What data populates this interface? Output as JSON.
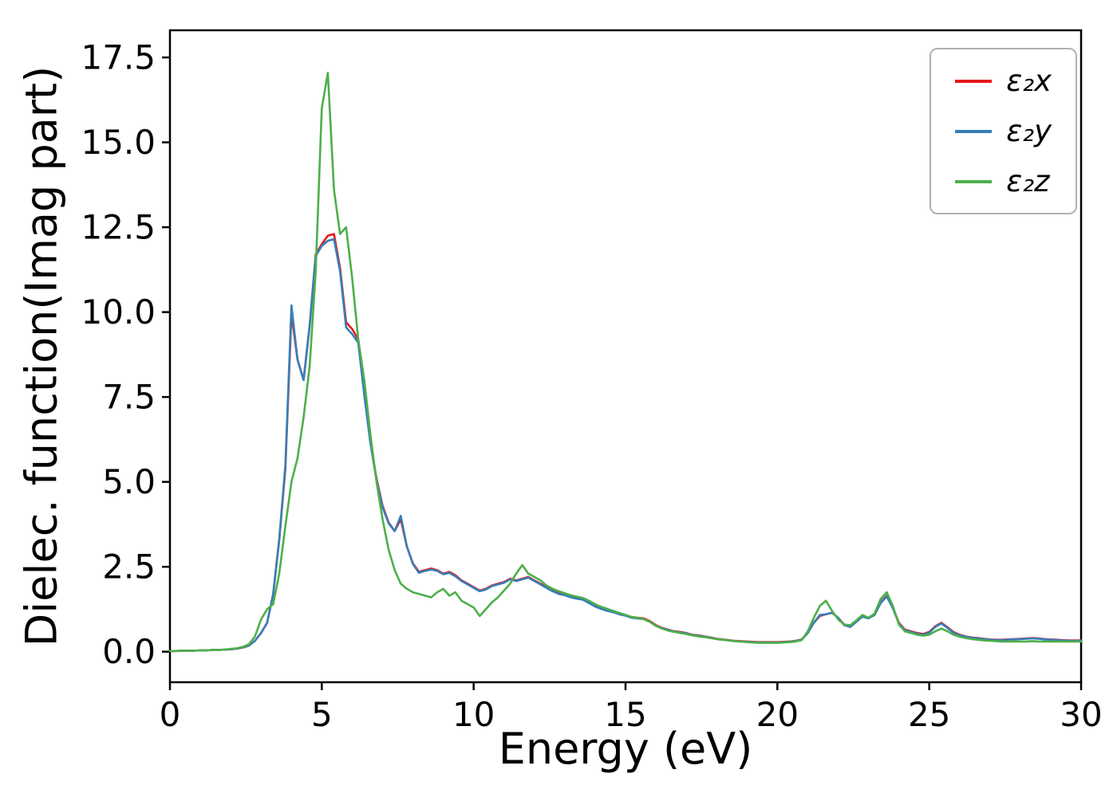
{
  "figure": {
    "background": "#ffffff"
  },
  "chart_data": {
    "type": "line",
    "title": "",
    "xlabel": "Energy (eV)",
    "ylabel": "Dielec. function(Imag part)",
    "xlim": [
      0,
      30
    ],
    "ylim": [
      -0.9,
      18.3
    ],
    "xticks": [
      0,
      5,
      10,
      15,
      20,
      25,
      30
    ],
    "xtick_labels": [
      "0",
      "5",
      "10",
      "15",
      "20",
      "25",
      "30"
    ],
    "yticks": [
      0,
      2.5,
      5,
      7.5,
      10,
      12.5,
      15,
      17.5
    ],
    "ytick_labels": [
      "0.0",
      "2.5",
      "5.0",
      "7.5",
      "10.0",
      "12.5",
      "15.0",
      "17.5"
    ],
    "grid": false,
    "legend": {
      "position": "upper right"
    },
    "x": [
      0.0,
      0.2,
      0.4,
      0.6,
      0.8,
      1.0,
      1.2,
      1.4,
      1.6,
      1.8,
      2.0,
      2.2,
      2.4,
      2.6,
      2.8,
      3.0,
      3.2,
      3.4,
      3.6,
      3.8,
      4.0,
      4.2,
      4.4,
      4.6,
      4.8,
      5.0,
      5.2,
      5.4,
      5.6,
      5.8,
      6.0,
      6.2,
      6.4,
      6.6,
      6.8,
      7.0,
      7.2,
      7.4,
      7.6,
      7.8,
      8.0,
      8.2,
      8.4,
      8.6,
      8.8,
      9.0,
      9.2,
      9.4,
      9.6,
      9.8,
      10.0,
      10.2,
      10.4,
      10.6,
      10.8,
      11.0,
      11.2,
      11.4,
      11.6,
      11.8,
      12.0,
      12.2,
      12.4,
      12.6,
      12.8,
      13.0,
      13.2,
      13.4,
      13.6,
      13.8,
      14.0,
      14.2,
      14.4,
      14.6,
      14.8,
      15.0,
      15.2,
      15.4,
      15.6,
      15.8,
      16.0,
      16.2,
      16.4,
      16.6,
      16.8,
      17.0,
      17.2,
      17.4,
      17.6,
      17.8,
      18.0,
      18.2,
      18.4,
      18.6,
      18.8,
      19.0,
      19.2,
      19.4,
      19.6,
      19.8,
      20.0,
      20.2,
      20.4,
      20.6,
      20.8,
      21.0,
      21.2,
      21.4,
      21.6,
      21.8,
      22.0,
      22.2,
      22.4,
      22.6,
      22.8,
      23.0,
      23.2,
      23.4,
      23.6,
      23.8,
      24.0,
      24.2,
      24.4,
      24.6,
      24.8,
      25.0,
      25.2,
      25.4,
      25.6,
      25.8,
      26.0,
      26.2,
      26.4,
      26.6,
      26.8,
      27.0,
      27.2,
      27.4,
      27.6,
      27.8,
      28.0,
      28.2,
      28.4,
      28.6,
      28.8,
      29.0,
      29.2,
      29.4,
      29.6,
      29.8,
      30.0
    ],
    "series": [
      {
        "name": "ε₂x",
        "color": "#e41a1c",
        "values": [
          0.02,
          0.02,
          0.03,
          0.03,
          0.03,
          0.04,
          0.04,
          0.05,
          0.05,
          0.06,
          0.07,
          0.09,
          0.12,
          0.18,
          0.32,
          0.55,
          0.85,
          1.7,
          3.3,
          5.4,
          9.95,
          8.6,
          8.0,
          9.6,
          11.7,
          12.0,
          12.25,
          12.3,
          11.3,
          9.7,
          9.5,
          9.2,
          7.6,
          6.2,
          5.1,
          4.3,
          3.8,
          3.55,
          3.9,
          3.1,
          2.6,
          2.35,
          2.4,
          2.45,
          2.4,
          2.3,
          2.35,
          2.25,
          2.1,
          2.0,
          1.9,
          1.8,
          1.85,
          1.95,
          2.0,
          2.05,
          2.15,
          2.1,
          2.15,
          2.2,
          2.1,
          2.0,
          1.9,
          1.8,
          1.72,
          1.68,
          1.62,
          1.58,
          1.55,
          1.45,
          1.35,
          1.28,
          1.22,
          1.18,
          1.12,
          1.08,
          1.02,
          1.0,
          0.98,
          0.9,
          0.78,
          0.7,
          0.65,
          0.6,
          0.58,
          0.55,
          0.5,
          0.48,
          0.45,
          0.42,
          0.38,
          0.36,
          0.34,
          0.32,
          0.31,
          0.3,
          0.29,
          0.28,
          0.28,
          0.28,
          0.28,
          0.29,
          0.3,
          0.32,
          0.36,
          0.55,
          0.85,
          1.05,
          1.1,
          1.15,
          1.0,
          0.8,
          0.75,
          0.9,
          1.05,
          1.0,
          1.1,
          1.45,
          1.65,
          1.3,
          0.85,
          0.65,
          0.6,
          0.55,
          0.52,
          0.58,
          0.75,
          0.85,
          0.72,
          0.58,
          0.5,
          0.45,
          0.42,
          0.4,
          0.38,
          0.36,
          0.35,
          0.35,
          0.36,
          0.37,
          0.38,
          0.39,
          0.4,
          0.39,
          0.37,
          0.36,
          0.35,
          0.34,
          0.33,
          0.33,
          0.33
        ]
      },
      {
        "name": "ε₂y",
        "color": "#377eb8",
        "values": [
          0.02,
          0.02,
          0.03,
          0.03,
          0.03,
          0.04,
          0.04,
          0.05,
          0.05,
          0.06,
          0.07,
          0.09,
          0.12,
          0.18,
          0.32,
          0.55,
          0.85,
          1.7,
          3.3,
          5.5,
          10.2,
          8.6,
          8.0,
          9.6,
          11.65,
          11.95,
          12.1,
          12.15,
          11.2,
          9.55,
          9.35,
          9.1,
          7.55,
          6.15,
          5.05,
          4.25,
          3.78,
          3.55,
          4.0,
          3.1,
          2.58,
          2.32,
          2.38,
          2.42,
          2.38,
          2.28,
          2.32,
          2.22,
          2.08,
          1.98,
          1.88,
          1.78,
          1.83,
          1.93,
          1.98,
          2.03,
          2.13,
          2.08,
          2.13,
          2.18,
          2.08,
          1.98,
          1.88,
          1.78,
          1.7,
          1.66,
          1.6,
          1.56,
          1.53,
          1.43,
          1.33,
          1.26,
          1.2,
          1.16,
          1.1,
          1.06,
          1.0,
          0.98,
          0.96,
          0.88,
          0.76,
          0.69,
          0.64,
          0.59,
          0.57,
          0.54,
          0.49,
          0.47,
          0.44,
          0.41,
          0.37,
          0.35,
          0.33,
          0.31,
          0.3,
          0.29,
          0.28,
          0.27,
          0.27,
          0.27,
          0.27,
          0.28,
          0.29,
          0.31,
          0.35,
          0.55,
          0.85,
          1.08,
          1.1,
          1.15,
          1.0,
          0.78,
          0.73,
          0.88,
          1.03,
          0.98,
          1.08,
          1.43,
          1.63,
          1.28,
          0.83,
          0.63,
          0.58,
          0.53,
          0.5,
          0.56,
          0.73,
          0.83,
          0.7,
          0.56,
          0.48,
          0.44,
          0.41,
          0.39,
          0.37,
          0.35,
          0.34,
          0.34,
          0.35,
          0.36,
          0.37,
          0.38,
          0.39,
          0.38,
          0.36,
          0.35,
          0.34,
          0.33,
          0.32,
          0.32,
          0.32
        ]
      },
      {
        "name": "ε₂z",
        "color": "#4daf4a",
        "values": [
          0.02,
          0.02,
          0.03,
          0.03,
          0.03,
          0.04,
          0.04,
          0.05,
          0.05,
          0.06,
          0.08,
          0.1,
          0.14,
          0.22,
          0.45,
          0.95,
          1.25,
          1.4,
          2.3,
          3.7,
          5.0,
          5.7,
          6.9,
          8.4,
          11.2,
          16.0,
          17.05,
          13.6,
          12.3,
          12.5,
          11.0,
          9.2,
          8.0,
          6.4,
          5.0,
          3.9,
          3.0,
          2.4,
          2.0,
          1.85,
          1.75,
          1.7,
          1.65,
          1.6,
          1.75,
          1.85,
          1.65,
          1.75,
          1.5,
          1.4,
          1.3,
          1.05,
          1.25,
          1.45,
          1.6,
          1.8,
          2.0,
          2.3,
          2.55,
          2.3,
          2.2,
          2.1,
          1.95,
          1.85,
          1.78,
          1.72,
          1.66,
          1.62,
          1.58,
          1.5,
          1.4,
          1.32,
          1.26,
          1.2,
          1.14,
          1.08,
          1.02,
          1.0,
          0.96,
          0.88,
          0.76,
          0.68,
          0.62,
          0.58,
          0.55,
          0.52,
          0.48,
          0.45,
          0.43,
          0.4,
          0.37,
          0.35,
          0.33,
          0.31,
          0.3,
          0.28,
          0.27,
          0.26,
          0.26,
          0.26,
          0.26,
          0.27,
          0.28,
          0.3,
          0.34,
          0.6,
          1.0,
          1.35,
          1.5,
          1.2,
          0.95,
          0.8,
          0.78,
          0.92,
          1.08,
          1.0,
          1.12,
          1.55,
          1.75,
          1.35,
          0.8,
          0.6,
          0.55,
          0.5,
          0.47,
          0.5,
          0.6,
          0.68,
          0.6,
          0.5,
          0.44,
          0.4,
          0.37,
          0.35,
          0.33,
          0.32,
          0.31,
          0.3,
          0.3,
          0.3,
          0.3,
          0.3,
          0.31,
          0.3,
          0.3,
          0.3,
          0.3,
          0.3,
          0.3,
          0.3,
          0.3
        ]
      }
    ]
  }
}
